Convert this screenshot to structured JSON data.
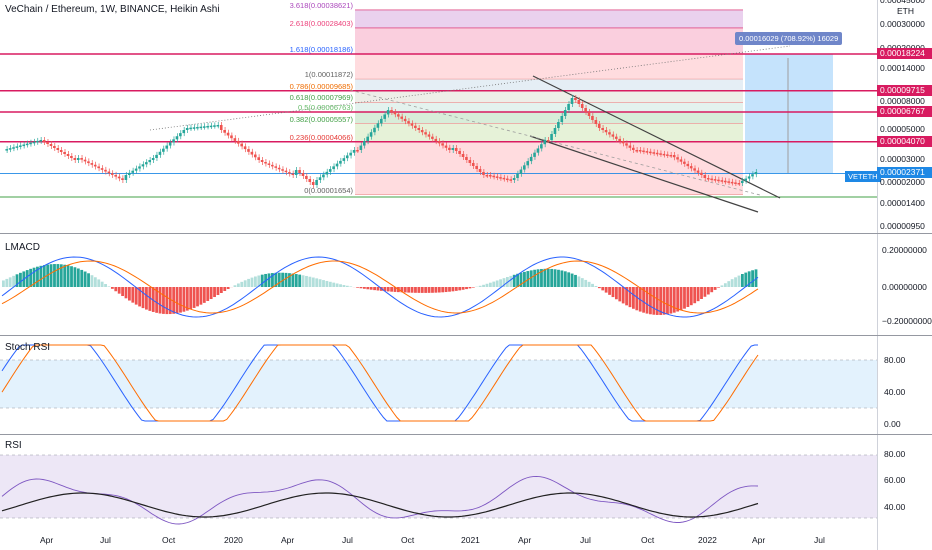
{
  "symbol_title": "VeChain / Ethereum, 1W, BINANCE, Heikin Ashi",
  "quote_currency": "ETH",
  "pair_label": "VETETH",
  "callout": "0.00016029 (708.92%) 16029",
  "price_axis": {
    "ticks": [
      {
        "label": "0.00045000",
        "value": 0.00045
      },
      {
        "label": "0.00030000",
        "value": 0.0003
      },
      {
        "label": "0.00020000",
        "value": 0.0002
      },
      {
        "label": "0.00014000",
        "value": 0.00014
      },
      {
        "label": "0.00008000",
        "value": 8e-05
      },
      {
        "label": "0.00005000",
        "value": 5e-05
      },
      {
        "label": "0.00003000",
        "value": 3e-05
      },
      {
        "label": "0.00002000",
        "value": 2e-05
      },
      {
        "label": "0.00001400",
        "value": 1.4e-05
      },
      {
        "label": "0.00000950",
        "value": 9.5e-06
      }
    ],
    "tags": [
      {
        "label": "0.00018224",
        "color": "#d81b60"
      },
      {
        "label": "0.00009715",
        "color": "#d81b60"
      },
      {
        "label": "0.00006767",
        "color": "#d81b60"
      },
      {
        "label": "0.00004070",
        "color": "#d81b60"
      },
      {
        "label": "0.00002371",
        "color": "#1e88e5"
      }
    ]
  },
  "fib_levels": [
    {
      "label": "3.618(0.00038621)",
      "ratio": 3.618
    },
    {
      "label": "2.618(0.00028403)",
      "ratio": 2.618
    },
    {
      "label": "1.618(0.00018186)",
      "ratio": 1.618
    },
    {
      "label": "1(0.00011872)",
      "ratio": 1
    },
    {
      "label": "0.786(0.00009685)",
      "ratio": 0.786
    },
    {
      "label": "0.618(0.00007969)",
      "ratio": 0.618
    },
    {
      "label": "0.5(0.00006763)",
      "ratio": 0.5
    },
    {
      "label": "0.382(0.00005557)",
      "ratio": 0.382
    },
    {
      "label": "0.236(0.00004066)",
      "ratio": 0.236
    },
    {
      "label": "0(0.00001654)",
      "ratio": 0
    }
  ],
  "panes": {
    "lmacd": {
      "title": "LMACD",
      "ticks": [
        "0.20000000",
        "0.00000000",
        "−0.20000000"
      ]
    },
    "stoch": {
      "title": "Stoch RSI",
      "ticks": [
        "80.00",
        "40.00",
        "0.00"
      ]
    },
    "rsi": {
      "title": "RSI",
      "ticks": [
        "80.00",
        "60.00",
        "40.00"
      ]
    }
  },
  "time_axis": [
    "Apr",
    "Jul",
    "Oct",
    "2020",
    "Apr",
    "Jul",
    "Oct",
    "2021",
    "Apr",
    "Jul",
    "Oct",
    "2022",
    "Apr",
    "Jul"
  ],
  "colors": {
    "up": "#26a69a",
    "down": "#ef5350",
    "macd": "#2962ff",
    "signal": "#ff6d00",
    "stoch_band": "#e3f2fd",
    "rsi_band": "#ede7f6"
  }
}
